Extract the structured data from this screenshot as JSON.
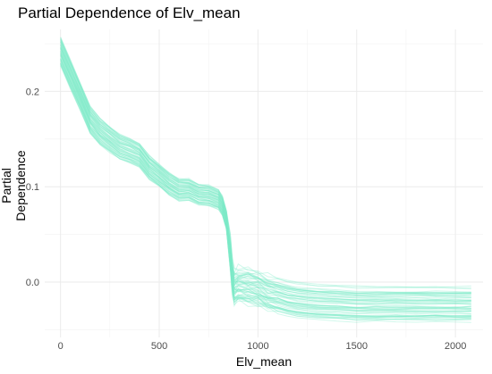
{
  "chart_data": {
    "type": "line",
    "title": "Partial Dependence of Elv_mean",
    "xlabel": "Elv_mean",
    "ylabel": "Partial Dependence",
    "xlim": [
      -80,
      2140
    ],
    "ylim": [
      -0.058,
      0.265
    ],
    "x_ticks": [
      0,
      500,
      1000,
      1500,
      2000
    ],
    "y_ticks": [
      0.0,
      0.1,
      0.2
    ],
    "x_tick_labels": [
      "0",
      "500",
      "1000",
      "1500",
      "2000"
    ],
    "y_tick_labels": [
      "0.0",
      "0.1",
      "0.2"
    ],
    "grid": true,
    "line_color": "#7FEBC8",
    "series_count": 60,
    "central_curve": {
      "x": [
        0,
        50,
        100,
        150,
        200,
        250,
        300,
        350,
        400,
        450,
        500,
        550,
        600,
        650,
        700,
        750,
        800,
        820,
        840,
        860,
        870,
        880,
        900,
        950,
        1000,
        1050,
        1100,
        1150,
        1200,
        1300,
        1400,
        1500,
        1600,
        1700,
        1800,
        1900,
        2000,
        2080
      ],
      "y": [
        0.242,
        0.218,
        0.195,
        0.17,
        0.158,
        0.15,
        0.142,
        0.138,
        0.133,
        0.12,
        0.112,
        0.103,
        0.097,
        0.097,
        0.092,
        0.091,
        0.087,
        0.08,
        0.065,
        0.03,
        0.005,
        -0.007,
        -0.004,
        -0.005,
        -0.007,
        -0.012,
        -0.015,
        -0.018,
        -0.02,
        -0.022,
        -0.023,
        -0.024,
        -0.024,
        -0.024,
        -0.024,
        -0.024,
        -0.024,
        -0.024
      ]
    }
  }
}
